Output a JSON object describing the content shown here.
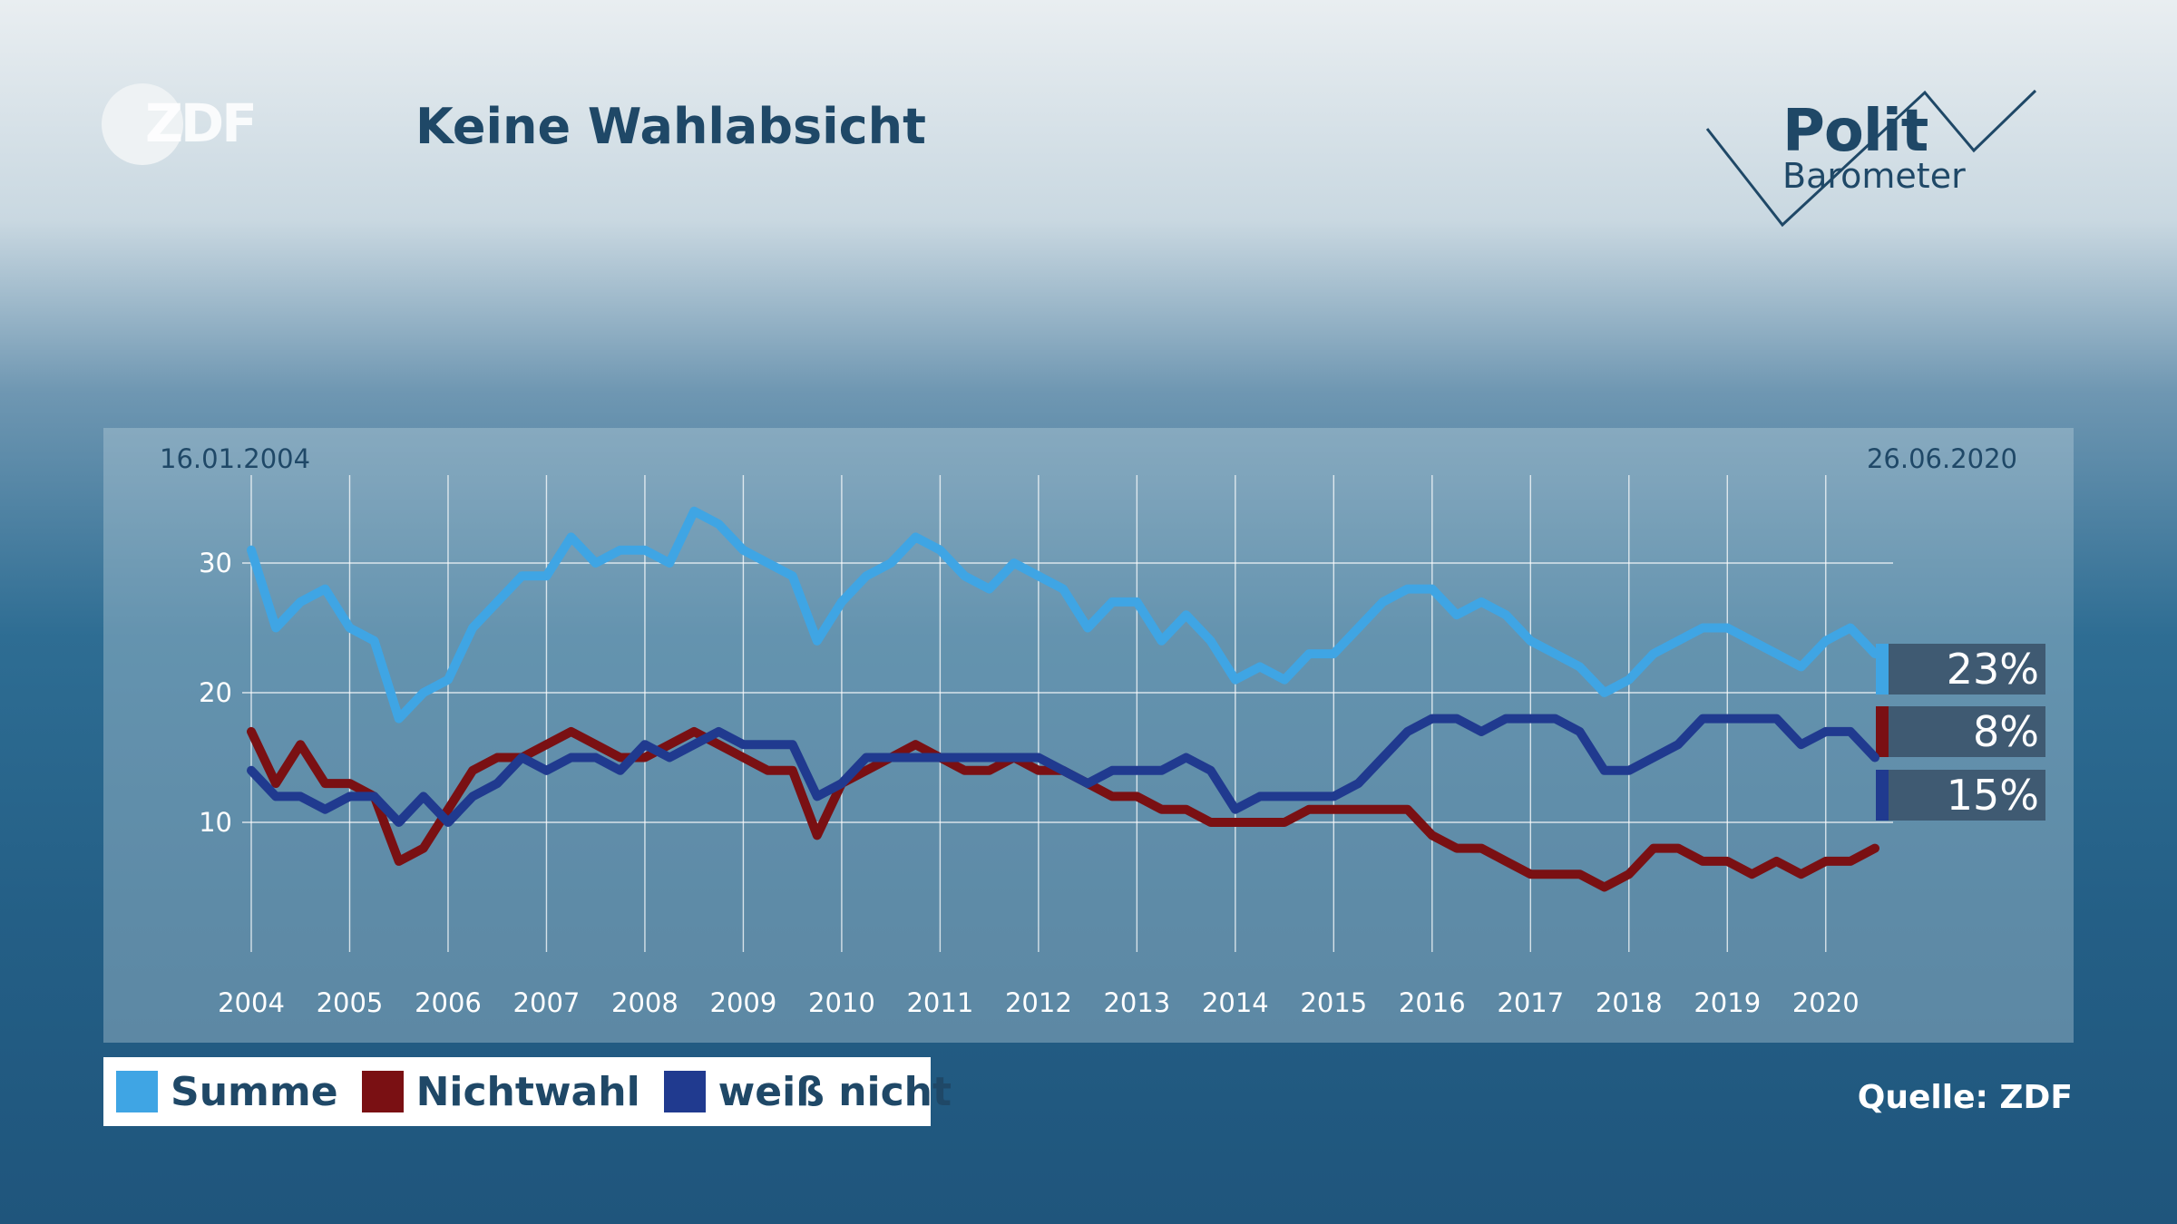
{
  "header": {
    "title": "Keine Wahlabsicht",
    "logo_text": "ZDF"
  },
  "branding": {
    "polit": "Polit",
    "barometer": "Barometer"
  },
  "source": "Quelle: ZDF",
  "colors": {
    "summe": "#3fa5e4",
    "nichtwahl": "#7a1013",
    "weiss_nicht": "#203a8f",
    "label_box": "#3f5a72"
  },
  "chart_data": {
    "type": "line",
    "start_date_label": "16.01.2004",
    "end_date_label": "26.06.2020",
    "x_range": [
      2004.0,
      2020.5
    ],
    "x_ticks": [
      "2004",
      "2005",
      "2006",
      "2007",
      "2008",
      "2009",
      "2010",
      "2011",
      "2012",
      "2013",
      "2014",
      "2015",
      "2016",
      "2017",
      "2018",
      "2019",
      "2020"
    ],
    "y_ticks": [
      "10",
      "20",
      "30"
    ],
    "ylim": [
      0,
      40
    ],
    "grid": true,
    "legend_position": "bottom-left",
    "series": [
      {
        "name": "Summe",
        "color": "#3fa5e4",
        "end_label": "23%",
        "points": [
          [
            2004.0,
            31
          ],
          [
            2004.25,
            25
          ],
          [
            2004.5,
            27
          ],
          [
            2004.75,
            28
          ],
          [
            2005.0,
            25
          ],
          [
            2005.25,
            24
          ],
          [
            2005.5,
            18
          ],
          [
            2005.75,
            20
          ],
          [
            2006.0,
            21
          ],
          [
            2006.25,
            25
          ],
          [
            2006.5,
            27
          ],
          [
            2006.75,
            29
          ],
          [
            2007.0,
            29
          ],
          [
            2007.25,
            32
          ],
          [
            2007.5,
            30
          ],
          [
            2007.75,
            31
          ],
          [
            2008.0,
            31
          ],
          [
            2008.25,
            30
          ],
          [
            2008.5,
            34
          ],
          [
            2008.75,
            33
          ],
          [
            2009.0,
            31
          ],
          [
            2009.25,
            30
          ],
          [
            2009.5,
            29
          ],
          [
            2009.75,
            24
          ],
          [
            2010.0,
            27
          ],
          [
            2010.25,
            29
          ],
          [
            2010.5,
            30
          ],
          [
            2010.75,
            32
          ],
          [
            2011.0,
            31
          ],
          [
            2011.25,
            29
          ],
          [
            2011.5,
            28
          ],
          [
            2011.75,
            30
          ],
          [
            2012.0,
            29
          ],
          [
            2012.25,
            28
          ],
          [
            2012.5,
            25
          ],
          [
            2012.75,
            27
          ],
          [
            2013.0,
            27
          ],
          [
            2013.25,
            24
          ],
          [
            2013.5,
            26
          ],
          [
            2013.75,
            24
          ],
          [
            2014.0,
            21
          ],
          [
            2014.25,
            22
          ],
          [
            2014.5,
            21
          ],
          [
            2014.75,
            23
          ],
          [
            2015.0,
            23
          ],
          [
            2015.25,
            25
          ],
          [
            2015.5,
            27
          ],
          [
            2015.75,
            28
          ],
          [
            2016.0,
            28
          ],
          [
            2016.25,
            26
          ],
          [
            2016.5,
            27
          ],
          [
            2016.75,
            26
          ],
          [
            2017.0,
            24
          ],
          [
            2017.25,
            23
          ],
          [
            2017.5,
            22
          ],
          [
            2017.75,
            20
          ],
          [
            2018.0,
            21
          ],
          [
            2018.25,
            23
          ],
          [
            2018.5,
            24
          ],
          [
            2018.75,
            25
          ],
          [
            2019.0,
            25
          ],
          [
            2019.25,
            24
          ],
          [
            2019.5,
            23
          ],
          [
            2019.75,
            22
          ],
          [
            2020.0,
            24
          ],
          [
            2020.25,
            25
          ],
          [
            2020.5,
            23
          ]
        ]
      },
      {
        "name": "Nichtwahl",
        "color": "#7a1013",
        "end_label": "8%",
        "points": [
          [
            2004.0,
            17
          ],
          [
            2004.25,
            13
          ],
          [
            2004.5,
            16
          ],
          [
            2004.75,
            13
          ],
          [
            2005.0,
            13
          ],
          [
            2005.25,
            12
          ],
          [
            2005.5,
            7
          ],
          [
            2005.75,
            8
          ],
          [
            2006.0,
            11
          ],
          [
            2006.25,
            14
          ],
          [
            2006.5,
            15
          ],
          [
            2006.75,
            15
          ],
          [
            2007.0,
            16
          ],
          [
            2007.25,
            17
          ],
          [
            2007.5,
            16
          ],
          [
            2007.75,
            15
          ],
          [
            2008.0,
            15
          ],
          [
            2008.25,
            16
          ],
          [
            2008.5,
            17
          ],
          [
            2008.75,
            16
          ],
          [
            2009.0,
            15
          ],
          [
            2009.25,
            14
          ],
          [
            2009.5,
            14
          ],
          [
            2009.75,
            9
          ],
          [
            2010.0,
            13
          ],
          [
            2010.25,
            14
          ],
          [
            2010.5,
            15
          ],
          [
            2010.75,
            16
          ],
          [
            2011.0,
            15
          ],
          [
            2011.25,
            14
          ],
          [
            2011.5,
            14
          ],
          [
            2011.75,
            15
          ],
          [
            2012.0,
            14
          ],
          [
            2012.25,
            14
          ],
          [
            2012.5,
            13
          ],
          [
            2012.75,
            12
          ],
          [
            2013.0,
            12
          ],
          [
            2013.25,
            11
          ],
          [
            2013.5,
            11
          ],
          [
            2013.75,
            10
          ],
          [
            2014.0,
            10
          ],
          [
            2014.25,
            10
          ],
          [
            2014.5,
            10
          ],
          [
            2014.75,
            11
          ],
          [
            2015.0,
            11
          ],
          [
            2015.25,
            11
          ],
          [
            2015.5,
            11
          ],
          [
            2015.75,
            11
          ],
          [
            2016.0,
            9
          ],
          [
            2016.25,
            8
          ],
          [
            2016.5,
            8
          ],
          [
            2016.75,
            7
          ],
          [
            2017.0,
            6
          ],
          [
            2017.25,
            6
          ],
          [
            2017.5,
            6
          ],
          [
            2017.75,
            5
          ],
          [
            2018.0,
            6
          ],
          [
            2018.25,
            8
          ],
          [
            2018.5,
            8
          ],
          [
            2018.75,
            7
          ],
          [
            2019.0,
            7
          ],
          [
            2019.25,
            6
          ],
          [
            2019.5,
            7
          ],
          [
            2019.75,
            6
          ],
          [
            2020.0,
            7
          ],
          [
            2020.25,
            7
          ],
          [
            2020.5,
            8
          ]
        ]
      },
      {
        "name": "weiß nicht",
        "color": "#203a8f",
        "end_label": "15%",
        "points": [
          [
            2004.0,
            14
          ],
          [
            2004.25,
            12
          ],
          [
            2004.5,
            12
          ],
          [
            2004.75,
            11
          ],
          [
            2005.0,
            12
          ],
          [
            2005.25,
            12
          ],
          [
            2005.5,
            10
          ],
          [
            2005.75,
            12
          ],
          [
            2006.0,
            10
          ],
          [
            2006.25,
            12
          ],
          [
            2006.5,
            13
          ],
          [
            2006.75,
            15
          ],
          [
            2007.0,
            14
          ],
          [
            2007.25,
            15
          ],
          [
            2007.5,
            15
          ],
          [
            2007.75,
            14
          ],
          [
            2008.0,
            16
          ],
          [
            2008.25,
            15
          ],
          [
            2008.5,
            16
          ],
          [
            2008.75,
            17
          ],
          [
            2009.0,
            16
          ],
          [
            2009.25,
            16
          ],
          [
            2009.5,
            16
          ],
          [
            2009.75,
            12
          ],
          [
            2010.0,
            13
          ],
          [
            2010.25,
            15
          ],
          [
            2010.5,
            15
          ],
          [
            2010.75,
            15
          ],
          [
            2011.0,
            15
          ],
          [
            2011.25,
            15
          ],
          [
            2011.5,
            15
          ],
          [
            2011.75,
            15
          ],
          [
            2012.0,
            15
          ],
          [
            2012.25,
            14
          ],
          [
            2012.5,
            13
          ],
          [
            2012.75,
            14
          ],
          [
            2013.0,
            14
          ],
          [
            2013.25,
            14
          ],
          [
            2013.5,
            15
          ],
          [
            2013.75,
            14
          ],
          [
            2014.0,
            11
          ],
          [
            2014.25,
            12
          ],
          [
            2014.5,
            12
          ],
          [
            2014.75,
            12
          ],
          [
            2015.0,
            12
          ],
          [
            2015.25,
            13
          ],
          [
            2015.5,
            15
          ],
          [
            2015.75,
            17
          ],
          [
            2016.0,
            18
          ],
          [
            2016.25,
            18
          ],
          [
            2016.5,
            17
          ],
          [
            2016.75,
            18
          ],
          [
            2017.0,
            18
          ],
          [
            2017.25,
            18
          ],
          [
            2017.5,
            17
          ],
          [
            2017.75,
            14
          ],
          [
            2018.0,
            14
          ],
          [
            2018.25,
            15
          ],
          [
            2018.5,
            16
          ],
          [
            2018.75,
            18
          ],
          [
            2019.0,
            18
          ],
          [
            2019.25,
            18
          ],
          [
            2019.5,
            18
          ],
          [
            2019.75,
            16
          ],
          [
            2020.0,
            17
          ],
          [
            2020.25,
            17
          ],
          [
            2020.5,
            15
          ]
        ]
      }
    ]
  }
}
